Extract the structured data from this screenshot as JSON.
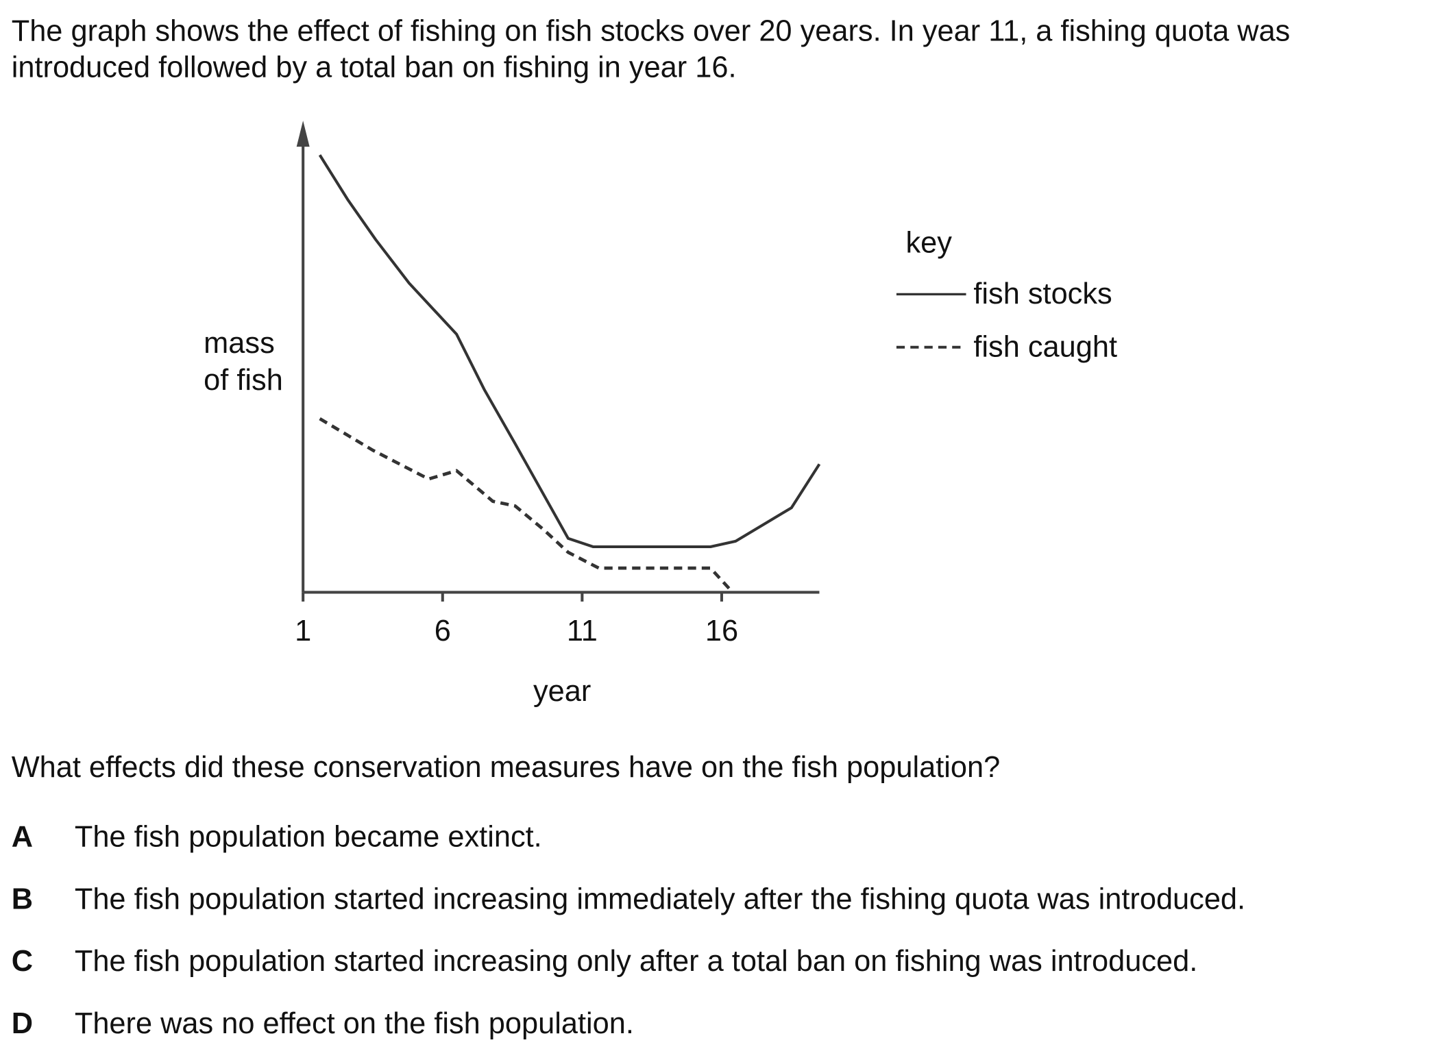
{
  "intro": [
    "The graph shows the effect of fishing on fish stocks over 20 years. In year 11, a fishing quota was",
    "introduced followed by a total ban on fishing in year 16."
  ],
  "chart_data": {
    "type": "line",
    "y_label": [
      "mass",
      "of fish"
    ],
    "x_label": "year",
    "legend_title": "key",
    "xlim": [
      1,
      19.5
    ],
    "xticks": [
      1,
      6,
      11,
      16
    ],
    "ylim": [
      0,
      100
    ],
    "series": [
      {
        "name": "fish stocks",
        "color": "#333333",
        "style": "solid",
        "x": [
          1.6,
          2.6,
          3.6,
          4.8,
          6.5,
          7.5,
          8.6,
          10.5,
          11.4,
          15.6,
          16.5,
          18.5,
          19.5
        ],
        "values": [
          94.2,
          84.6,
          76,
          66.6,
          55.6,
          43.6,
          32,
          11.6,
          9.8,
          9.8,
          11,
          18.2,
          27.6
        ]
      },
      {
        "name": "fish caught",
        "color": "#333333",
        "style": "dashed",
        "x": [
          1.6,
          3.5,
          5.5,
          6.5,
          7.8,
          8.6,
          9.6,
          10.5,
          11.6,
          15.6,
          16.3
        ],
        "values": [
          37.4,
          30.6,
          24.4,
          26.2,
          19.6,
          18.6,
          13.6,
          8.6,
          5.2,
          5.2,
          0.6
        ]
      }
    ]
  },
  "question": "What effects did these conservation measures have on the fish population?",
  "options": [
    {
      "letter": "A",
      "text": "The fish population became extinct."
    },
    {
      "letter": "B",
      "text": "The fish population started increasing immediately after the fishing quota was introduced."
    },
    {
      "letter": "C",
      "text": "The fish population started increasing only after a total ban on fishing was introduced."
    },
    {
      "letter": "D",
      "text": "There was no effect on the fish population."
    }
  ]
}
